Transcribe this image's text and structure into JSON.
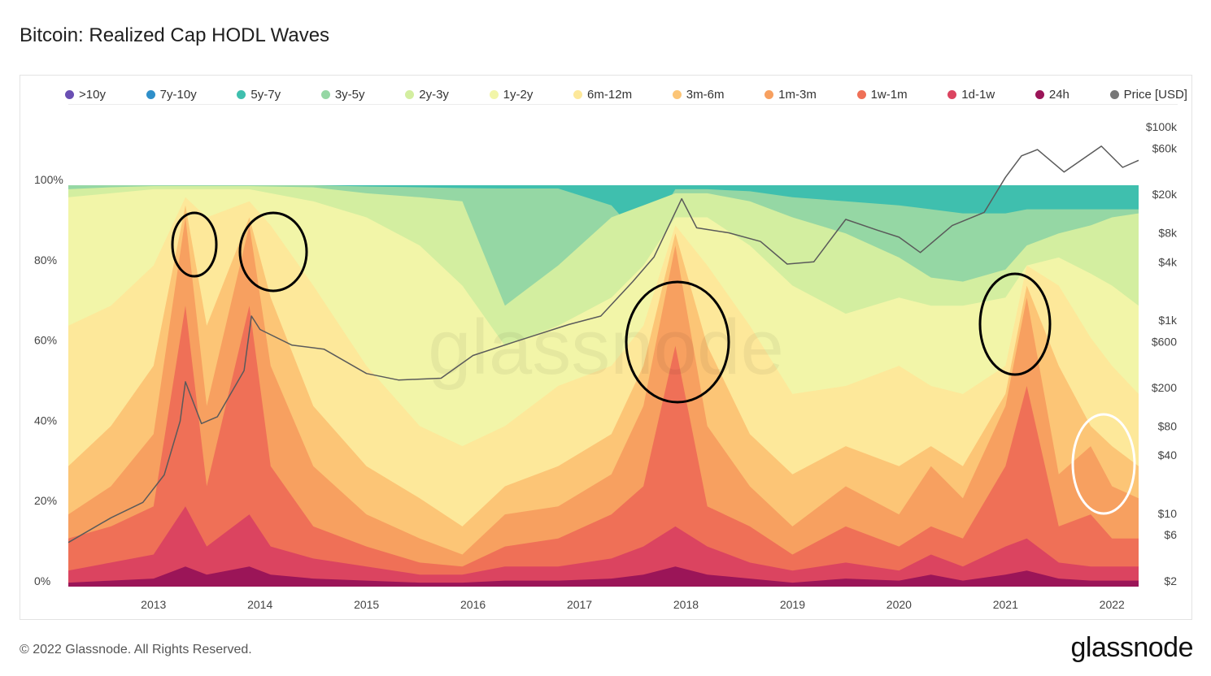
{
  "title": "Bitcoin: Realized Cap HODL Waves",
  "footer": "© 2022 Glassnode. All Rights Reserved.",
  "logo": "glassnode",
  "watermark": "glassnode",
  "legend": [
    {
      "label": ">10y",
      "color": "#6a4fb3"
    },
    {
      "label": "7y-10y",
      "color": "#2f8fc9"
    },
    {
      "label": "5y-7y",
      "color": "#3fbfae"
    },
    {
      "label": "3y-5y",
      "color": "#95d7a4"
    },
    {
      "label": "2y-3y",
      "color": "#d3eea0"
    },
    {
      "label": "1y-2y",
      "color": "#f2f5a8"
    },
    {
      "label": "6m-12m",
      "color": "#fde89a"
    },
    {
      "label": "3m-6m",
      "color": "#fcc576"
    },
    {
      "label": "1m-3m",
      "color": "#f7a060"
    },
    {
      "label": "1w-1m",
      "color": "#ef7057"
    },
    {
      "label": "1d-1w",
      "color": "#db4460"
    },
    {
      "label": "24h",
      "color": "#9b1558"
    },
    {
      "label": "Price [USD]",
      "color": "#777777"
    }
  ],
  "chart_data": {
    "type": "area",
    "stacked": true,
    "x_ticks": [
      "2013",
      "2014",
      "2015",
      "2016",
      "2017",
      "2018",
      "2019",
      "2020",
      "2021",
      "2022"
    ],
    "left_axis_ticks": [
      "0%",
      "20%",
      "40%",
      "60%",
      "80%",
      "100%"
    ],
    "right_axis_ticks": [
      "$2",
      "$6",
      "$10",
      "$40",
      "$80",
      "$200",
      "$600",
      "$1k",
      "$4k",
      "$8k",
      "$20k",
      "$60k",
      "$100k"
    ],
    "cumulative_boundaries_pct": {
      "dates": [
        2012.2,
        2012.6,
        2013.0,
        2013.3,
        2013.5,
        2013.9,
        2014.1,
        2014.5,
        2015.0,
        2015.5,
        2015.9,
        2016.3,
        2016.8,
        2017.3,
        2017.6,
        2017.9,
        2018.2,
        2018.6,
        2019.0,
        2019.5,
        2020.0,
        2020.3,
        2020.6,
        2021.0,
        2021.2,
        2021.5,
        2021.8,
        2022.0,
        2022.25
      ],
      "24h": [
        1,
        1.5,
        2,
        5,
        3,
        5,
        3,
        2,
        1.5,
        1,
        1,
        1.5,
        1.5,
        2,
        3,
        5,
        3,
        2,
        1,
        2,
        1.5,
        3,
        1.5,
        3,
        4,
        2,
        1.5,
        1.5,
        1.5
      ],
      "1d-1w": [
        4,
        6,
        8,
        20,
        10,
        18,
        10,
        7,
        5,
        3,
        3,
        5,
        5,
        7,
        10,
        15,
        10,
        6,
        4,
        6,
        4,
        8,
        5,
        10,
        12,
        6,
        5,
        5,
        5
      ],
      "1w-1m": [
        12,
        15,
        20,
        70,
        25,
        70,
        30,
        15,
        10,
        6,
        5,
        10,
        12,
        18,
        25,
        60,
        20,
        15,
        8,
        15,
        10,
        15,
        12,
        30,
        50,
        15,
        18,
        12,
        12
      ],
      "1m-3m": [
        18,
        25,
        38,
        92,
        45,
        90,
        55,
        30,
        18,
        12,
        8,
        18,
        20,
        28,
        45,
        85,
        40,
        25,
        15,
        25,
        18,
        30,
        22,
        45,
        72,
        28,
        35,
        25,
        22
      ],
      "3m-6m": [
        30,
        40,
        55,
        95,
        65,
        92,
        72,
        45,
        30,
        22,
        15,
        25,
        30,
        38,
        55,
        88,
        60,
        38,
        28,
        35,
        30,
        35,
        30,
        48,
        75,
        55,
        40,
        35,
        30
      ],
      "6m-12m": [
        65,
        70,
        80,
        97,
        92,
        96,
        90,
        75,
        55,
        40,
        35,
        40,
        50,
        55,
        65,
        90,
        80,
        65,
        48,
        50,
        55,
        50,
        48,
        55,
        80,
        75,
        62,
        55,
        48
      ],
      "1y-2y": [
        97,
        98,
        99,
        99,
        99,
        99,
        98,
        96,
        92,
        85,
        75,
        60,
        65,
        72,
        80,
        92,
        92,
        85,
        75,
        68,
        72,
        70,
        70,
        72,
        80,
        82,
        78,
        75,
        70
      ],
      "2y-3y": [
        99,
        99.5,
        99.8,
        99.8,
        99.8,
        99.8,
        99.7,
        99.5,
        98,
        97,
        96,
        70,
        80,
        92,
        95,
        98,
        98,
        96,
        92,
        88,
        82,
        77,
        76,
        79,
        85,
        88,
        90,
        92,
        93
      ],
      "3y-5y": [
        100,
        100,
        100,
        100,
        100,
        100,
        100,
        100,
        99.7,
        99.5,
        99.3,
        99.2,
        99.2,
        95,
        86,
        99,
        99,
        98.5,
        97,
        96,
        95,
        94,
        93,
        93,
        94,
        94,
        94,
        94,
        94
      ]
    },
    "price_usd": {
      "dates": [
        2012.2,
        2012.6,
        2012.9,
        2013.1,
        2013.25,
        2013.3,
        2013.45,
        2013.6,
        2013.85,
        2013.92,
        2014.0,
        2014.3,
        2014.6,
        2015.0,
        2015.3,
        2015.7,
        2016.0,
        2016.4,
        2016.9,
        2017.2,
        2017.5,
        2017.7,
        2017.96,
        2018.1,
        2018.4,
        2018.7,
        2018.95,
        2019.2,
        2019.5,
        2019.8,
        2020.0,
        2020.2,
        2020.5,
        2020.8,
        2021.0,
        2021.15,
        2021.3,
        2021.55,
        2021.9,
        2022.1,
        2022.25
      ],
      "values": [
        5,
        9,
        13,
        25,
        90,
        230,
        85,
        100,
        300,
        1100,
        800,
        550,
        500,
        280,
        240,
        250,
        430,
        600,
        900,
        1100,
        2500,
        4500,
        18000,
        9000,
        8000,
        6500,
        3800,
        4000,
        11000,
        8500,
        7200,
        5000,
        9500,
        13000,
        30000,
        50000,
        58000,
        34000,
        63000,
        38000,
        45000
      ]
    }
  }
}
